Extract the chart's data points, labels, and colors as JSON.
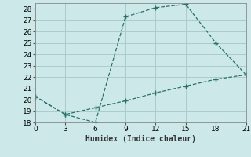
{
  "xlabel": "Humidex (Indice chaleur)",
  "bg_color": "#cce8e8",
  "grid_color": "#aacccc",
  "line_color": "#2a7068",
  "x_line1": [
    0,
    3,
    6,
    9,
    12,
    15,
    18,
    21
  ],
  "y_line1": [
    20.3,
    18.7,
    18.0,
    27.3,
    28.1,
    28.4,
    25.0,
    22.2
  ],
  "x_line2": [
    0,
    3,
    6,
    9,
    12,
    15,
    18,
    21
  ],
  "y_line2": [
    20.3,
    18.7,
    19.3,
    19.9,
    20.6,
    21.2,
    21.8,
    22.2
  ],
  "xlim": [
    0,
    21
  ],
  "ylim": [
    18,
    28.5
  ],
  "xticks": [
    0,
    3,
    6,
    9,
    12,
    15,
    18,
    21
  ],
  "yticks": [
    18,
    19,
    20,
    21,
    22,
    23,
    24,
    25,
    26,
    27,
    28
  ],
  "xlabel_fontsize": 7,
  "tick_fontsize": 6.5,
  "markersize": 2.5
}
